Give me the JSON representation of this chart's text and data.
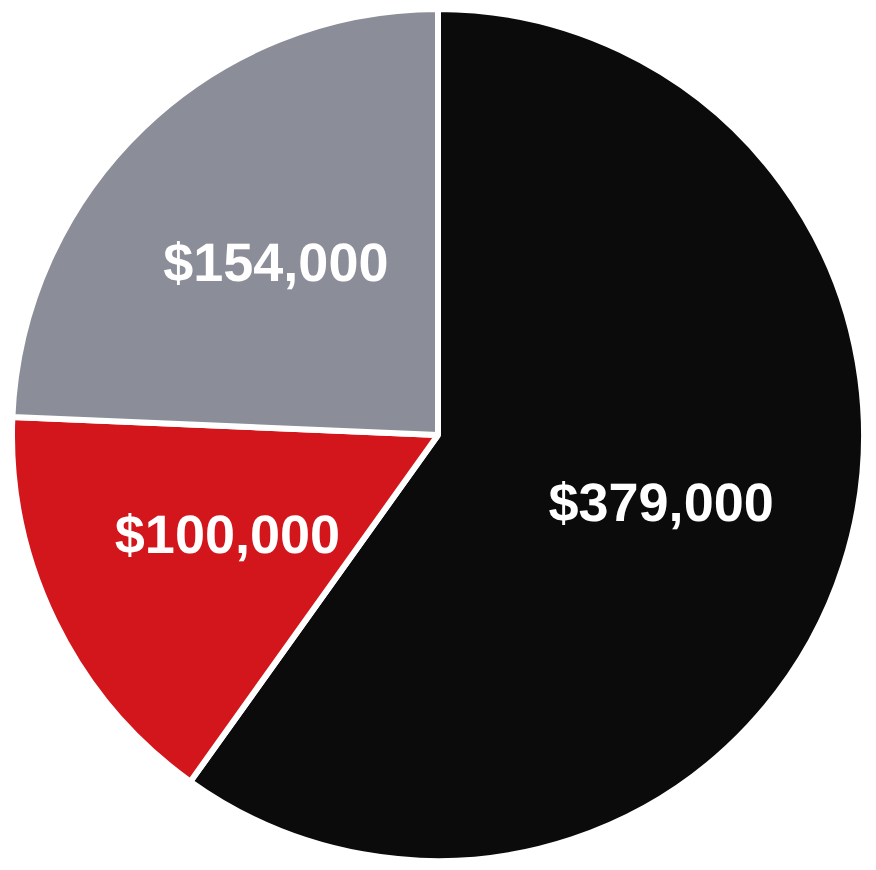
{
  "chart_data": {
    "type": "pie",
    "categories": [
      null,
      null,
      null
    ],
    "values": [
      379000,
      100000,
      154000
    ],
    "colors": [
      "#0b0b0b",
      "#d2161b",
      "#8b8e98"
    ],
    "value_labels": [
      "$379,000",
      "$100,000",
      "$154,000"
    ]
  }
}
